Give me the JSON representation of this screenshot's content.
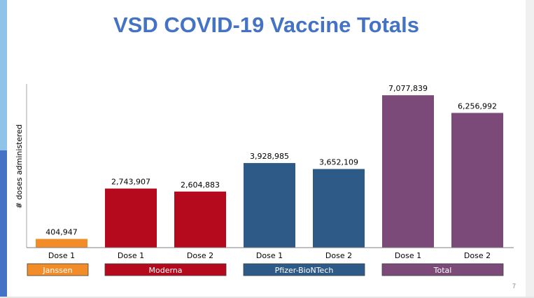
{
  "slide": {
    "page_number": "7",
    "accent_colors": {
      "light": "#8fc3ea",
      "dark": "#4472c4"
    }
  },
  "chart_data": {
    "type": "bar",
    "title": "VSD COVID-19 Vaccine Totals",
    "xlabel": "",
    "ylabel": "# doses administered",
    "ylim": [
      0,
      7700000
    ],
    "grid": false,
    "categories": [
      "Dose 1",
      "Dose 1",
      "Dose 2",
      "Dose 1",
      "Dose 2",
      "Dose 1",
      "Dose 2"
    ],
    "values": [
      404947,
      2743907,
      2604883,
      3928985,
      3652109,
      7077839,
      6256992
    ],
    "value_labels": [
      "404,947",
      "2,743,907",
      "2,604,883",
      "3,928,985",
      "3,652,109",
      "7,077,839",
      "6,256,992"
    ],
    "groups": [
      {
        "name": "Janssen",
        "start": 0,
        "count": 1,
        "color": "#f28c28"
      },
      {
        "name": "Moderna",
        "start": 1,
        "count": 2,
        "color": "#b5091e"
      },
      {
        "name": "Pfizer-BioNTech",
        "start": 3,
        "count": 2,
        "color": "#2e5a87"
      },
      {
        "name": "Total",
        "start": 5,
        "count": 2,
        "color": "#7b4a78"
      }
    ]
  }
}
